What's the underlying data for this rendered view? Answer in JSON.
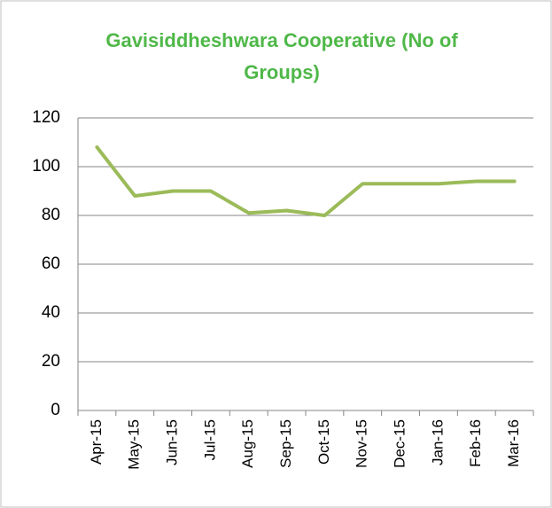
{
  "chart_data": {
    "type": "line",
    "title": "Gavisiddheshwara Cooperative (No of Groups)",
    "categories": [
      "Apr-15",
      "May-15",
      "Jun-15",
      "Jul-15",
      "Aug-15",
      "Sep-15",
      "Oct-15",
      "Nov-15",
      "Dec-15",
      "Jan-16",
      "Feb-16",
      "Mar-16"
    ],
    "values": [
      108,
      88,
      90,
      90,
      81,
      82,
      80,
      93,
      93,
      93,
      94,
      94
    ],
    "color": "#9bbb59",
    "ylim": [
      0,
      120
    ],
    "yticks": [
      0,
      20,
      40,
      60,
      80,
      100,
      120
    ],
    "grid": true
  }
}
